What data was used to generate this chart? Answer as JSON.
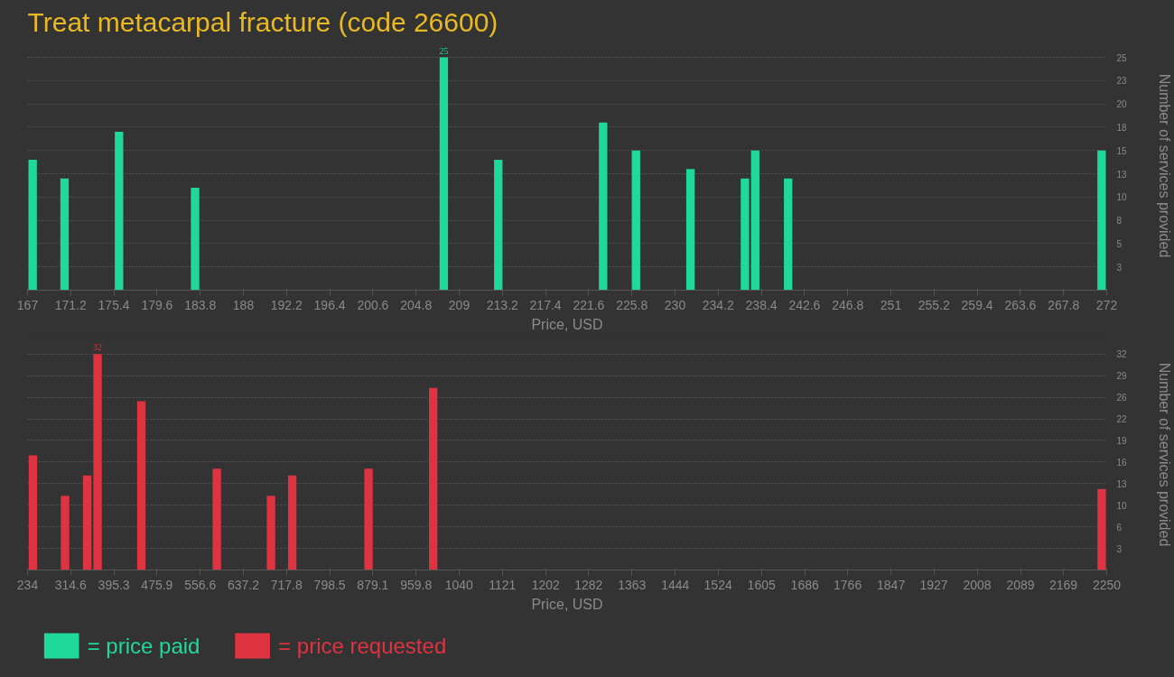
{
  "chart_data": [
    {
      "type": "bar",
      "title": "Treat metacarpal fracture (code 26600)",
      "xlabel": "Price, USD",
      "ylabel": "Number of services provided",
      "x": [
        167.5,
        170.6,
        175.9,
        183.3,
        207.5,
        212.8,
        223.0,
        226.2,
        231.5,
        236.8,
        237.8,
        241.0,
        271.5
      ],
      "series": [
        {
          "name": "= price paid",
          "color": "#1fd99a",
          "values": [
            14,
            12,
            17,
            11,
            25,
            14,
            18,
            15,
            13,
            12,
            15,
            12,
            15
          ],
          "value_labels": [
            null,
            null,
            null,
            null,
            "25",
            null,
            null,
            null,
            null,
            null,
            null,
            null,
            null
          ]
        }
      ],
      "xlim": [
        167,
        272
      ],
      "xticks": [
        167,
        171.2,
        175.4,
        179.6,
        183.8,
        188,
        192.2,
        196.4,
        200.6,
        204.8,
        209,
        213.2,
        217.4,
        221.6,
        225.8,
        230,
        234.2,
        238.4,
        242.6,
        246.8,
        251,
        255.2,
        259.4,
        263.6,
        267.8,
        272
      ],
      "ylim": [
        0,
        25
      ],
      "yticks": [
        {
          "value": 2.5,
          "label": "3"
        },
        5,
        {
          "value": 7.5,
          "label": "8"
        },
        10,
        {
          "value": 12.5,
          "label": "13"
        },
        15,
        {
          "value": 17.5,
          "label": "18"
        },
        20,
        {
          "value": 22.5,
          "label": "23"
        },
        25
      ],
      "grid": "y",
      "legend": "bottom"
    },
    {
      "type": "bar",
      "xlabel": "Price, USD",
      "ylabel": "Number of services provided",
      "x": [
        244.1,
        304.1,
        345.4,
        364.9,
        446.6,
        587.6,
        688.8,
        728.5,
        871.0,
        991.8,
        2240.6
      ],
      "series": [
        {
          "name": "= price requested",
          "color": "#de3341",
          "values": [
            17,
            11,
            14,
            32,
            25,
            15,
            11,
            14,
            15,
            27,
            12
          ],
          "value_labels": [
            null,
            null,
            null,
            "32",
            null,
            null,
            null,
            null,
            null,
            null,
            null
          ]
        }
      ],
      "xlim": [
        234,
        2250
      ],
      "xticks": [
        234,
        314.6,
        395.3,
        475.9,
        556.6,
        637.2,
        717.8,
        798.5,
        879.1,
        959.8,
        1040,
        1121,
        1202,
        1282,
        1363,
        1444,
        1524,
        1605,
        1686,
        1766,
        1847,
        1927,
        2008,
        2089,
        2169,
        2250
      ],
      "ylim": [
        0,
        32
      ],
      "yticks": [
        {
          "value": 3.2,
          "label": "3"
        },
        {
          "value": 6.4,
          "label": "6"
        },
        {
          "value": 9.6,
          "label": "10"
        },
        {
          "value": 12.8,
          "label": "13"
        },
        16,
        {
          "value": 19.2,
          "label": "19"
        },
        {
          "value": 22.4,
          "label": "22"
        },
        {
          "value": 25.6,
          "label": "26"
        },
        {
          "value": 28.8,
          "label": "29"
        },
        32
      ],
      "grid": "y",
      "legend": "bottom"
    }
  ]
}
